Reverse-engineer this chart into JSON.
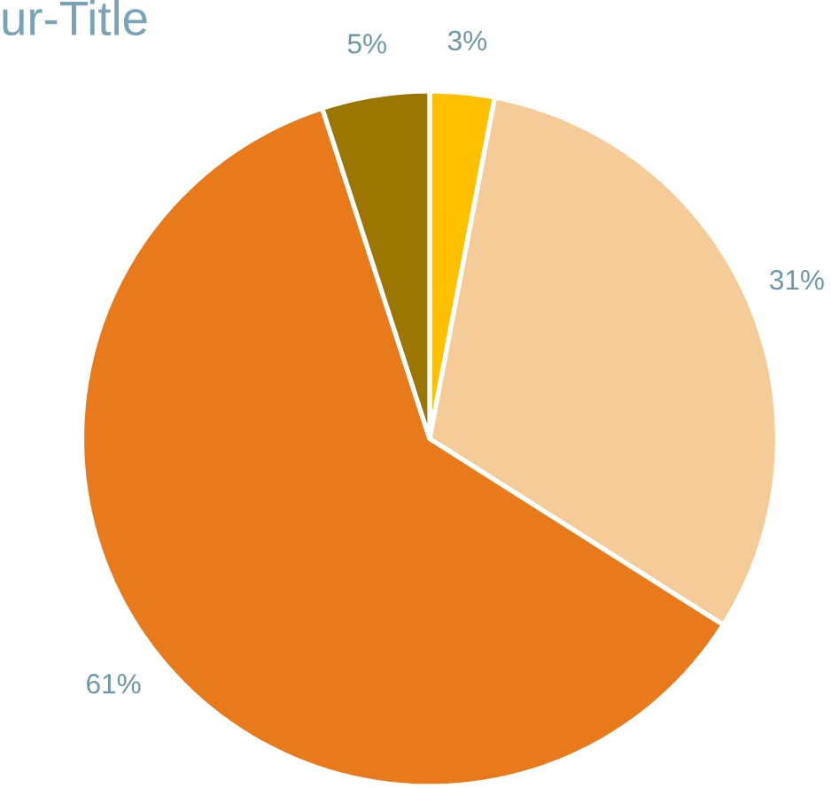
{
  "chart_data": {
    "type": "pie",
    "title": "ur-Title",
    "categories": [
      null,
      null,
      null,
      null
    ],
    "values": [
      3,
      31,
      61,
      5
    ],
    "value_labels": [
      "3%",
      "31%",
      "61%",
      "5%"
    ],
    "colors": [
      "#ffc000",
      "#f5cb98",
      "#e97a1b",
      "#9b7600"
    ]
  }
}
